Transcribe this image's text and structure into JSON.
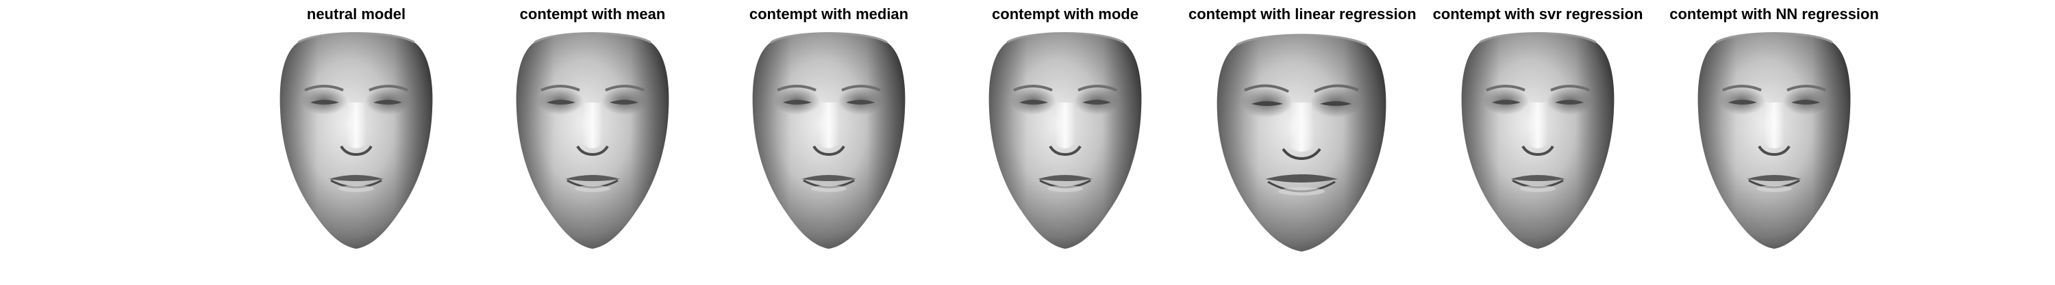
{
  "figure": {
    "panels": [
      {
        "title": "neutral model"
      },
      {
        "title": "contempt with mean"
      },
      {
        "title": "contempt with median"
      },
      {
        "title": "contempt with mode"
      },
      {
        "title": "contempt with linear regression"
      },
      {
        "title": "contempt with svr regression"
      },
      {
        "title": "contempt with NN regression"
      }
    ]
  },
  "colors": {
    "background": "#ffffff",
    "title_text": "#000000",
    "face_light": "#f2f2f2",
    "face_mid": "#9a9a9a",
    "face_dark": "#3c3c3c"
  }
}
